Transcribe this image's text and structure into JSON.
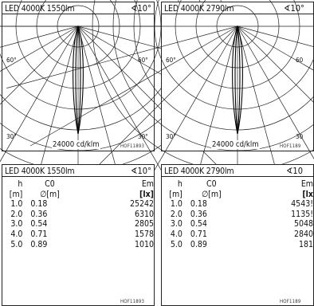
{
  "panels": [
    {
      "title": "LED 4000K 1550lm",
      "angle": "∢10°",
      "label_60_left": "60°",
      "label_60_right": "60°",
      "label_30_left": "30°",
      "label_30_right": "30°",
      "scale": "24000 cd/klm",
      "code": "HOF11893"
    },
    {
      "title": "LED 4000K 2790lm",
      "angle": "∢10°",
      "label_60_left": "60°",
      "label_60_right": "60",
      "label_30_left": "30°",
      "label_30_right": "30",
      "scale": "24000 cd/klm",
      "code": "HOF1189"
    }
  ],
  "tables": [
    {
      "title": "LED 4000K 1550lm",
      "angle": "∢10°",
      "headers_row1": [
        "h",
        "C0",
        "Em"
      ],
      "headers_row2": [
        "[m]",
        "∅[m]",
        "[lx]"
      ],
      "rows": [
        [
          "1.0",
          "0.18",
          "25242"
        ],
        [
          "2.0",
          "0.36",
          "6310"
        ],
        [
          "3.0",
          "0.54",
          "2805"
        ],
        [
          "4.0",
          "0.71",
          "1578"
        ],
        [
          "5.0",
          "0.89",
          "1010"
        ]
      ],
      "code": "HOF11893"
    },
    {
      "title": "LED 4000K 2790lm",
      "angle": "∢10",
      "headers_row1": [
        "h",
        "C0",
        "Em"
      ],
      "headers_row2": [
        "[m]",
        "∅[m]",
        "[lx"
      ],
      "rows": [
        [
          "1.0",
          "0.18",
          "4543!"
        ],
        [
          "2.0",
          "0.36",
          "1135!"
        ],
        [
          "3.0",
          "0.54",
          "5048"
        ],
        [
          "4.0",
          "0.71",
          "2840"
        ],
        [
          "5.0",
          "0.89",
          "181"
        ]
      ],
      "code": "HOF1189"
    }
  ]
}
